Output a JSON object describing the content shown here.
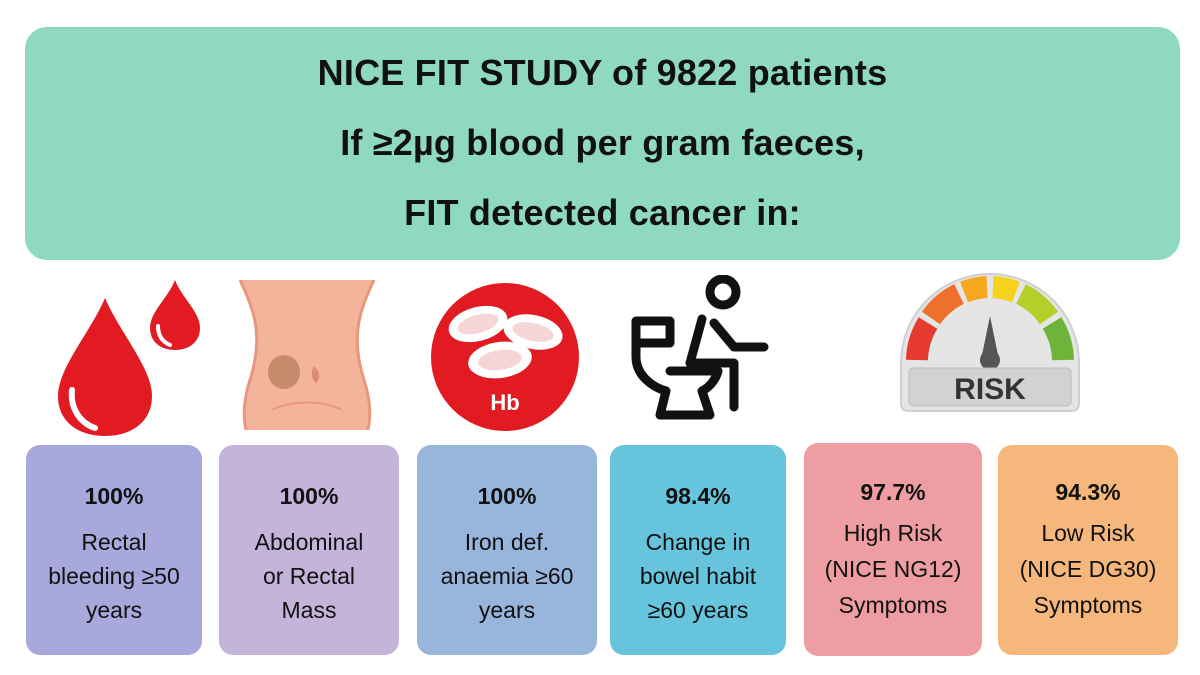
{
  "header": {
    "lines": [
      "NICE FIT STUDY of 9822 patients",
      "If ≥2µg blood per gram faeces,",
      "FIT detected cancer in:"
    ],
    "background": "#8fd9c2"
  },
  "icons": {
    "blood_drops": "blood-drop-icon",
    "abdomen": "abdomen-icon",
    "hb_cells": "red-blood-cell-icon",
    "hb_label": "Hb",
    "toilet": "toilet-person-icon",
    "risk_gauge": "risk-gauge-icon",
    "risk_label": "RISK"
  },
  "cards": [
    {
      "percent": "100%",
      "lines": [
        "Rectal",
        "bleeding ≥50",
        "years"
      ],
      "color": "#a9a8dc"
    },
    {
      "percent": "100%",
      "lines": [
        "Abdominal",
        "or Rectal",
        "Mass"
      ],
      "color": "#c4b4da"
    },
    {
      "percent": "100%",
      "lines": [
        "Iron def.",
        "anaemia ≥60",
        "years"
      ],
      "color": "#98b5dc"
    },
    {
      "percent": "98.4%",
      "lines": [
        "Change in",
        "bowel habit",
        "≥60 years"
      ],
      "color": "#66c5dc"
    },
    {
      "percent": "97.7%",
      "lines": [
        "High Risk",
        "(NICE NG12)",
        "Symptoms"
      ],
      "color": "#ee9ea3"
    },
    {
      "percent": "94.3%",
      "lines": [
        "Low Risk",
        "(NICE DG30)",
        "Symptoms"
      ],
      "color": "#f6b77c"
    }
  ]
}
